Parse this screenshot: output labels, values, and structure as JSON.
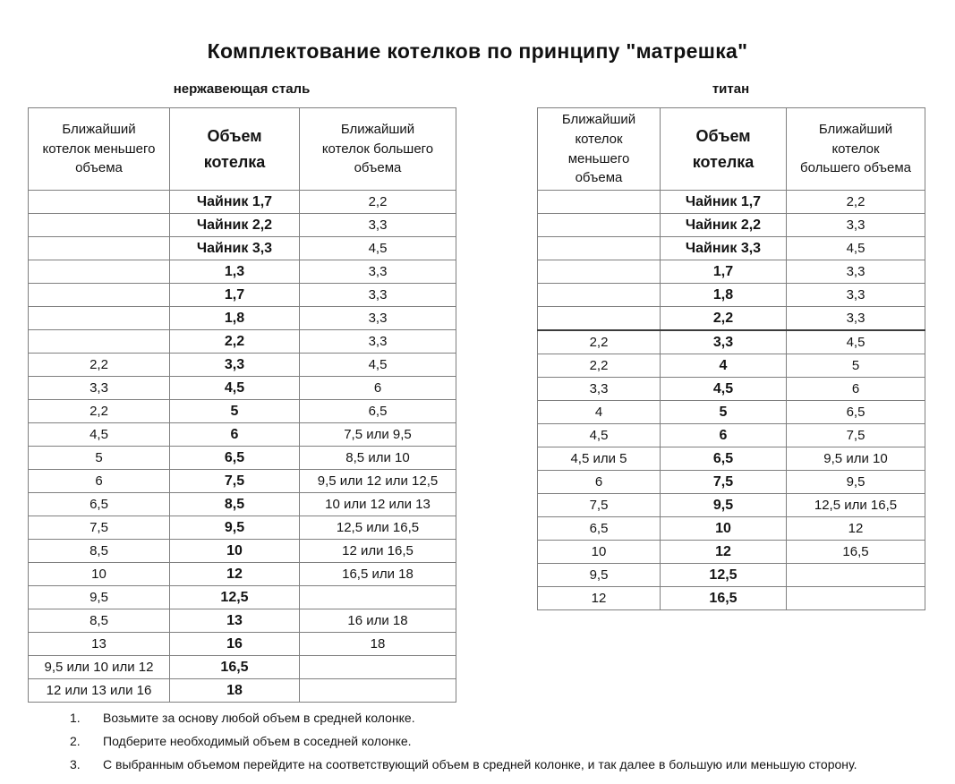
{
  "title": "Комплектование котелков по принципу \"матрешка\"",
  "tables": [
    {
      "subtitle": "нержавеющая сталь",
      "headers": [
        "Ближайший\nкотелок меньшего\nобъема",
        "Объем\nкотелка",
        "Ближайший\nкотелок большего\nобъема"
      ],
      "rows": [
        [
          "",
          "Чайник 1,7",
          "2,2"
        ],
        [
          "",
          "Чайник 2,2",
          "3,3"
        ],
        [
          "",
          "Чайник 3,3",
          "4,5"
        ],
        [
          "",
          "1,3",
          "3,3"
        ],
        [
          "",
          "1,7",
          "3,3"
        ],
        [
          "",
          "1,8",
          "3,3"
        ],
        [
          "",
          "2,2",
          "3,3"
        ],
        [
          "2,2",
          "3,3",
          "4,5"
        ],
        [
          "3,3",
          "4,5",
          "6"
        ],
        [
          "2,2",
          "5",
          "6,5"
        ],
        [
          "4,5",
          "6",
          "7,5 или 9,5"
        ],
        [
          "5",
          "6,5",
          "8,5 или 10"
        ],
        [
          "6",
          "7,5",
          "9,5 или 12 или 12,5"
        ],
        [
          "6,5",
          "8,5",
          "10 или 12 или 13"
        ],
        [
          "7,5",
          "9,5",
          "12,5 или 16,5"
        ],
        [
          "8,5",
          "10",
          "12 или 16,5"
        ],
        [
          "10",
          "12",
          "16,5 или 18"
        ],
        [
          "9,5",
          "12,5",
          ""
        ],
        [
          "8,5",
          "13",
          "16 или 18"
        ],
        [
          "13",
          "16",
          "18"
        ],
        [
          "9,5 или 10 или 12",
          "16,5",
          ""
        ],
        [
          "12 или 13 или 16",
          "18",
          ""
        ]
      ]
    },
    {
      "subtitle": "титан",
      "headers": [
        "Ближайший\nкотелок\nменьшего\nобъема",
        "Объем\nкотелка",
        "Ближайший\nкотелок\nбольшего объема"
      ],
      "divider_above_row": 6,
      "rows": [
        [
          "",
          "Чайник 1,7",
          "2,2"
        ],
        [
          "",
          "Чайник 2,2",
          "3,3"
        ],
        [
          "",
          "Чайник 3,3",
          "4,5"
        ],
        [
          "",
          "1,7",
          "3,3"
        ],
        [
          "",
          "1,8",
          "3,3"
        ],
        [
          "",
          "2,2",
          "3,3"
        ],
        [
          "2,2",
          "3,3",
          "4,5"
        ],
        [
          "2,2",
          "4",
          "5"
        ],
        [
          "3,3",
          "4,5",
          "6"
        ],
        [
          "4",
          "5",
          "6,5"
        ],
        [
          "4,5",
          "6",
          "7,5"
        ],
        [
          "4,5 или 5",
          "6,5",
          "9,5 или 10"
        ],
        [
          "6",
          "7,5",
          "9,5"
        ],
        [
          "7,5",
          "9,5",
          "12,5 или 16,5"
        ],
        [
          "6,5",
          "10",
          "12"
        ],
        [
          "10",
          "12",
          "16,5"
        ],
        [
          "9,5",
          "12,5",
          ""
        ],
        [
          "12",
          "16,5",
          ""
        ]
      ]
    }
  ],
  "notes": [
    {
      "num": "1.",
      "text": "Возьмите за основу любой объем в средней колонке."
    },
    {
      "num": "2.",
      "text": "Подберите необходимый объем в соседней колонке."
    },
    {
      "num": "3.",
      "text": "С выбранным объемом перейдите на соответствующий объем в средней колонке, и так далее в большую или меньшую сторону."
    }
  ],
  "colors": {
    "border": "#7f7f7f",
    "strong_border": "#3c3c3c",
    "text": "#141414"
  }
}
